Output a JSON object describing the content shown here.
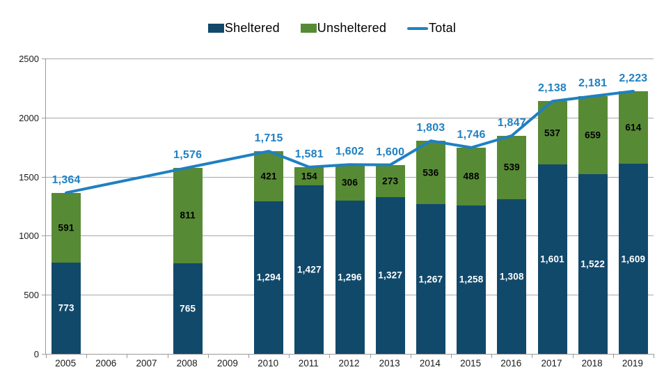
{
  "legend": {
    "items": [
      {
        "label": "Sheltered",
        "color": "#11496B",
        "swatch": "box",
        "icon": "legend-box-icon"
      },
      {
        "label": "Unsheltered",
        "color": "#578A35",
        "swatch": "box",
        "icon": "legend-box-icon"
      },
      {
        "label": "Total",
        "color": "#1F80C2",
        "swatch": "line",
        "icon": "legend-line-icon"
      }
    ]
  },
  "colors": {
    "sheltered": "#11496B",
    "unsheltered": "#578A35",
    "total_line": "#1F80C2",
    "gridline": "#A6A6A6",
    "axis": "#9A9A9A",
    "bar_label_sheltered": "#FFFFFF",
    "bar_label_unsheltered": "#000000"
  },
  "chart_data": {
    "type": "bar",
    "subtype": "stacked-bar-with-line",
    "title": "",
    "xlabel": "",
    "ylabel": "",
    "categories": [
      "2005",
      "2006",
      "2007",
      "2008",
      "2009",
      "2010",
      "2011",
      "2012",
      "2013",
      "2014",
      "2015",
      "2016",
      "2017",
      "2018",
      "2019"
    ],
    "series": [
      {
        "name": "Sheltered",
        "color": "#11496B",
        "label_color": "#FFFFFF",
        "values": [
          773,
          null,
          null,
          765,
          null,
          1294,
          1427,
          1296,
          1327,
          1267,
          1258,
          1308,
          1601,
          1522,
          1609
        ]
      },
      {
        "name": "Unsheltered",
        "color": "#578A35",
        "label_color": "#000000",
        "values": [
          591,
          null,
          null,
          811,
          null,
          421,
          154,
          306,
          273,
          536,
          488,
          539,
          537,
          659,
          614
        ]
      }
    ],
    "line_series": {
      "name": "Total",
      "color": "#1F80C2",
      "values": [
        1364,
        null,
        null,
        1576,
        null,
        1715,
        1581,
        1602,
        1600,
        1803,
        1746,
        1847,
        2138,
        2181,
        2223
      ]
    },
    "ylim": [
      0,
      2500
    ],
    "yticks": [
      0,
      500,
      1000,
      1500,
      2000,
      2500
    ],
    "grid": true,
    "legend_position": "top"
  }
}
